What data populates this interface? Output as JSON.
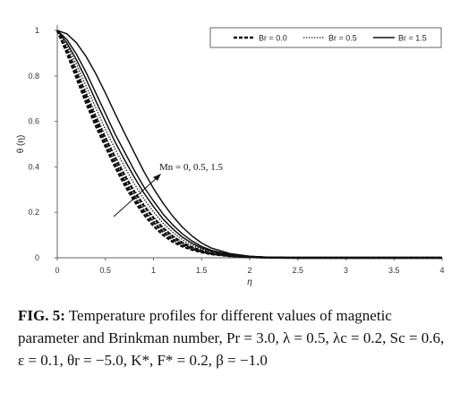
{
  "chart_data": {
    "type": "line",
    "xlabel": "η",
    "ylabel": "θ (η)",
    "xlim": [
      0,
      4
    ],
    "ylim": [
      0,
      1
    ],
    "xticks": [
      "0",
      "0.5",
      "1",
      "1.5",
      "2",
      "2.5",
      "3",
      "3.5",
      "4"
    ],
    "yticks": [
      "0",
      "0.2",
      "0.4",
      "0.6",
      "0.8",
      "1"
    ],
    "grid": false,
    "legend_position": "top-right",
    "legend": [
      {
        "label": "Br = 0.0",
        "style": "dashed"
      },
      {
        "label": "Br = 0.5",
        "style": "dotted"
      },
      {
        "label": "Br = 1.5",
        "style": "solid"
      }
    ],
    "annotation": "Mn = 0, 0.5, 1.5",
    "x": [
      0,
      0.1,
      0.2,
      0.3,
      0.4,
      0.5,
      0.6,
      0.7,
      0.8,
      0.9,
      1.0,
      1.1,
      1.2,
      1.3,
      1.4,
      1.5,
      1.6,
      1.8,
      2.0,
      2.2,
      2.5,
      3.0,
      3.5,
      4.0
    ],
    "series": [
      {
        "style": "dashed",
        "Mn": 0,
        "values": [
          1.0,
          0.9,
          0.79,
          0.68,
          0.58,
          0.49,
          0.4,
          0.32,
          0.25,
          0.19,
          0.14,
          0.1,
          0.07,
          0.05,
          0.035,
          0.024,
          0.016,
          0.007,
          0.003,
          0.001,
          0.0,
          0.0,
          0.0,
          0.0
        ]
      },
      {
        "style": "dashed",
        "Mn": 0.5,
        "values": [
          1.0,
          0.905,
          0.8,
          0.695,
          0.595,
          0.5,
          0.415,
          0.335,
          0.265,
          0.205,
          0.155,
          0.113,
          0.08,
          0.056,
          0.039,
          0.027,
          0.018,
          0.008,
          0.003,
          0.001,
          0.0,
          0.0,
          0.0,
          0.0
        ]
      },
      {
        "style": "dashed",
        "Mn": 1.5,
        "values": [
          1.0,
          0.915,
          0.815,
          0.715,
          0.615,
          0.525,
          0.44,
          0.36,
          0.29,
          0.228,
          0.175,
          0.13,
          0.094,
          0.066,
          0.046,
          0.031,
          0.021,
          0.009,
          0.004,
          0.001,
          0.0,
          0.0,
          0.0,
          0.0
        ]
      },
      {
        "style": "dotted",
        "Mn": 0,
        "values": [
          1.0,
          0.915,
          0.81,
          0.705,
          0.605,
          0.51,
          0.425,
          0.345,
          0.275,
          0.213,
          0.162,
          0.12,
          0.086,
          0.061,
          0.042,
          0.028,
          0.019,
          0.008,
          0.003,
          0.001,
          0.0,
          0.0,
          0.0,
          0.0
        ]
      },
      {
        "style": "dotted",
        "Mn": 0.5,
        "values": [
          1.0,
          0.925,
          0.83,
          0.73,
          0.63,
          0.535,
          0.45,
          0.37,
          0.298,
          0.235,
          0.18,
          0.134,
          0.097,
          0.069,
          0.048,
          0.032,
          0.021,
          0.009,
          0.004,
          0.001,
          0.0,
          0.0,
          0.0,
          0.0
        ]
      },
      {
        "style": "dotted",
        "Mn": 1.5,
        "values": [
          1.0,
          0.935,
          0.85,
          0.755,
          0.66,
          0.565,
          0.48,
          0.4,
          0.325,
          0.26,
          0.202,
          0.152,
          0.112,
          0.08,
          0.056,
          0.038,
          0.025,
          0.011,
          0.004,
          0.001,
          0.0,
          0.0,
          0.0,
          0.0
        ]
      },
      {
        "style": "solid",
        "Mn": 0,
        "values": [
          1.0,
          0.945,
          0.87,
          0.785,
          0.69,
          0.6,
          0.51,
          0.43,
          0.355,
          0.285,
          0.225,
          0.17,
          0.127,
          0.091,
          0.064,
          0.043,
          0.029,
          0.012,
          0.005,
          0.002,
          0.0,
          0.0,
          0.0,
          0.0
        ]
      },
      {
        "style": "solid",
        "Mn": 0.5,
        "values": [
          1.0,
          0.96,
          0.895,
          0.815,
          0.725,
          0.635,
          0.545,
          0.465,
          0.385,
          0.312,
          0.25,
          0.192,
          0.145,
          0.105,
          0.074,
          0.05,
          0.033,
          0.014,
          0.006,
          0.002,
          0.0,
          0.0,
          0.0,
          0.0
        ]
      },
      {
        "style": "solid",
        "Mn": 1.5,
        "values": [
          1.0,
          0.985,
          0.945,
          0.885,
          0.81,
          0.725,
          0.635,
          0.548,
          0.463,
          0.38,
          0.305,
          0.24,
          0.183,
          0.135,
          0.096,
          0.065,
          0.043,
          0.018,
          0.007,
          0.002,
          0.0,
          0.0,
          0.0,
          0.0
        ]
      }
    ]
  },
  "caption": {
    "label": "FIG. 5:",
    "text": " Temperature profiles for different values of magnetic parameter and Brinkman number, Pr = 3.0, λ = 0.5, λc = 0.2, Sc = 0.6, ε = 0.1, θr = −5.0, K*, F* = 0.2, β = −1.0"
  }
}
